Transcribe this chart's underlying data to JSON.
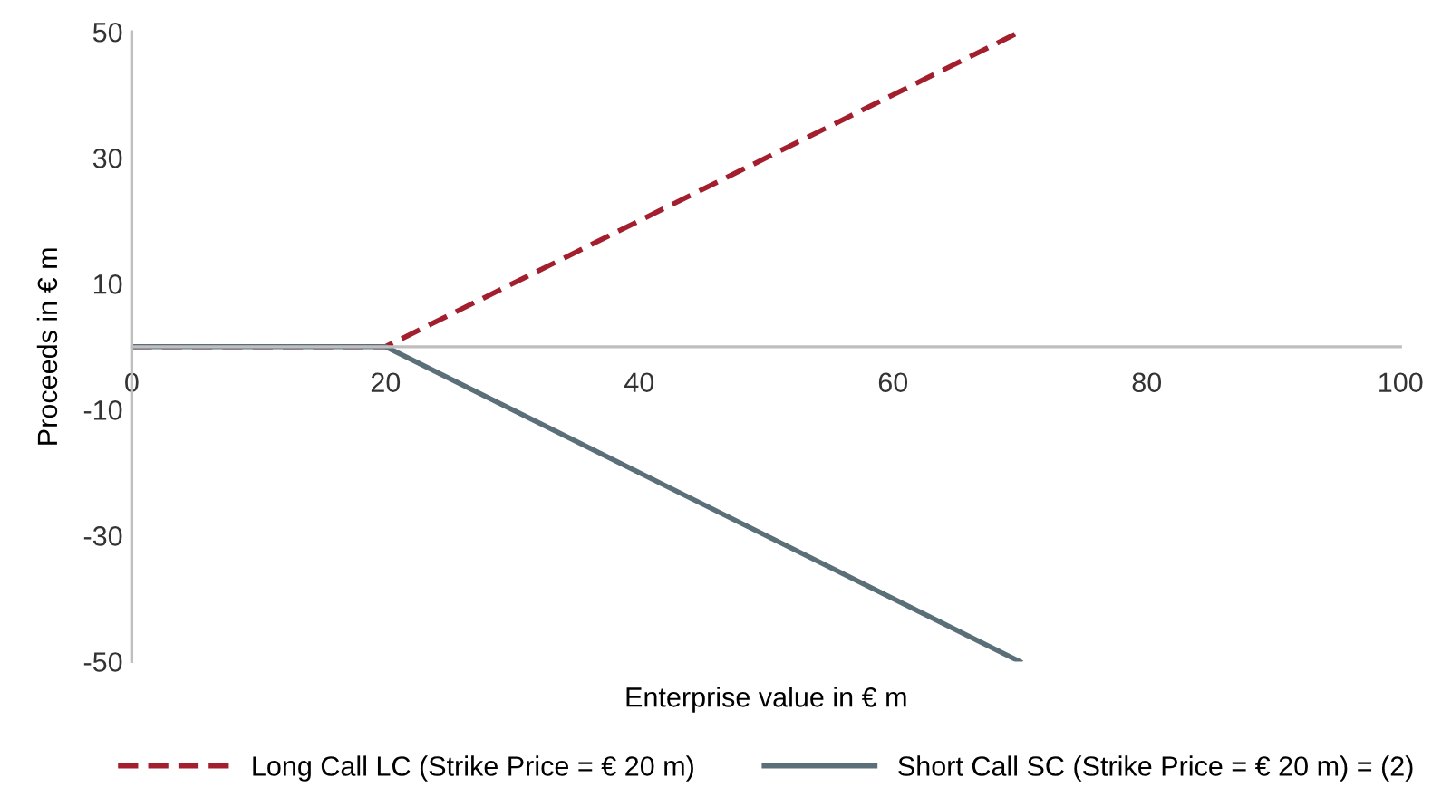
{
  "chart_data": {
    "type": "line",
    "xlabel": "Enterprise value in € m",
    "ylabel": "Proceeds in € m",
    "series": [
      {
        "name": "Long Call LC (Strike Price = € 20 m)",
        "color": "#a31f2e",
        "x": [
          0,
          20,
          70
        ],
        "values": [
          0,
          0,
          50
        ],
        "line_style": "dashed"
      },
      {
        "name": "Short Call SC (Strike Price = € 20 m) = (2)",
        "color": "#5b6f78",
        "x": [
          0,
          20,
          70
        ],
        "values": [
          0,
          0,
          -50
        ],
        "line_style": "solid"
      }
    ],
    "xlim": [
      0,
      100
    ],
    "xticks": [
      0,
      20,
      40,
      60,
      80,
      100
    ],
    "ylim": [
      -50,
      50
    ],
    "yticks": [
      -50,
      -30,
      -10,
      10,
      30,
      50
    ],
    "grid": false,
    "legend": "bottom",
    "marker": "none"
  }
}
